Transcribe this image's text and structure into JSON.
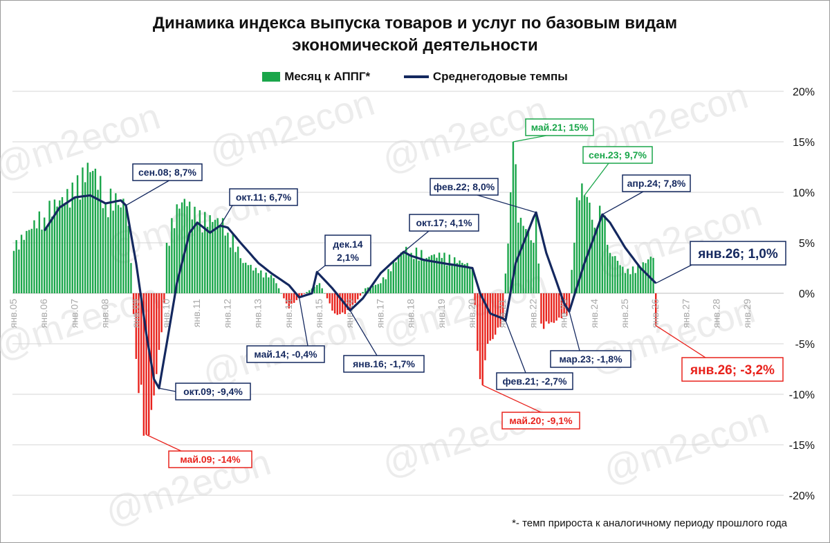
{
  "title_line1": "Динамика индекса выпуска товаров и услуг по базовым видам",
  "title_line2": "экономической деятельности",
  "legend": {
    "bars": "Месяц к АППГ*",
    "line": "Среднегодовые темпы"
  },
  "footnote": "*- темп прироста к аналогичному периоду прошлого года",
  "watermark": "@m2econ",
  "colors": {
    "bar_pos": "#1aa64a",
    "bar_neg": "#e8221c",
    "line": "#14285f",
    "ann_green": "#1aa64a",
    "ann_red": "#e8221c",
    "ann_navy": "#14285f"
  },
  "chart_data": {
    "type": "bar",
    "title": "Динамика индекса выпуска товаров и услуг по базовым видам экономической деятельности",
    "ylim": [
      -20,
      20
    ],
    "y_ticks": [
      "20%",
      "15%",
      "10%",
      "5%",
      "0%",
      "-5%",
      "-10%",
      "-15%",
      "-20%"
    ],
    "x_ticks": [
      "янв.05",
      "янв.06",
      "янв.07",
      "янв.08",
      "янв.09",
      "янв.10",
      "янв.11",
      "янв.12",
      "янв.13",
      "янв.14",
      "янв.15",
      "янв.16",
      "янв.17",
      "янв.18",
      "янв.19",
      "янв.20",
      "янв.21",
      "янв.22",
      "янв.23",
      "янв.24",
      "янв.25",
      "янв.26",
      "янв.27",
      "янв.28",
      "янв.29"
    ],
    "series": [
      {
        "name": "Месяц к АППГ*",
        "type": "bar",
        "anchors": [
          [
            "янв.05",
            4.2
          ],
          [
            "янв.06",
            7.5
          ],
          [
            "янв.07",
            9.5
          ],
          [
            "июл.07",
            12
          ],
          [
            "янв.08",
            9
          ],
          [
            "июл.08",
            8.5
          ],
          [
            "сен.08",
            8.7
          ],
          [
            "ноя.08",
            3
          ],
          [
            "янв.09",
            -6.5
          ],
          [
            "май.09",
            -14
          ],
          [
            "сен.09",
            -8
          ],
          [
            "дек.09",
            -1
          ],
          [
            "янв.10",
            5
          ],
          [
            "июл.10",
            9
          ],
          [
            "янв.11",
            7
          ],
          [
            "окт.11",
            6.7
          ],
          [
            "янв.12",
            6
          ],
          [
            "июл.12",
            3
          ],
          [
            "янв.13",
            2
          ],
          [
            "июл.13",
            1.5
          ],
          [
            "янв.14",
            -1.5
          ],
          [
            "май.14",
            -0.4
          ],
          [
            "янв.15",
            1
          ],
          [
            "июл.15",
            -2
          ],
          [
            "янв.16",
            -1.7
          ],
          [
            "июл.16",
            0.5
          ],
          [
            "янв.17",
            1
          ],
          [
            "окт.17",
            4.1
          ],
          [
            "янв.18",
            4
          ],
          [
            "июл.18",
            3.5
          ],
          [
            "янв.19",
            3.5
          ],
          [
            "июл.19",
            3
          ],
          [
            "янв.20",
            2.5
          ],
          [
            "апр.20",
            -8.5
          ],
          [
            "май.20",
            -9.1
          ],
          [
            "июл.20",
            -5
          ],
          [
            "янв.21",
            -2.5
          ],
          [
            "апр.21",
            10
          ],
          [
            "май.21",
            15
          ],
          [
            "июл.21",
            7
          ],
          [
            "янв.22",
            5
          ],
          [
            "фев.22",
            8
          ],
          [
            "апр.22",
            -3
          ],
          [
            "июл.22",
            -3
          ],
          [
            "янв.23",
            -2
          ],
          [
            "мар.23",
            -1.8
          ],
          [
            "июн.23",
            9.5
          ],
          [
            "сен.23",
            9.7
          ],
          [
            "янв.24",
            6.5
          ],
          [
            "апр.24",
            7.8
          ],
          [
            "июл.24",
            4
          ],
          [
            "янв.25",
            2
          ],
          [
            "июл.25",
            2.5
          ],
          [
            "дек.25",
            3.5
          ],
          [
            "янв.26",
            -3.2
          ]
        ]
      },
      {
        "name": "Среднегодовые темпы",
        "type": "line",
        "anchors": [
          [
            "янв.06",
            6.2
          ],
          [
            "июл.06",
            8.5
          ],
          [
            "янв.07",
            9.5
          ],
          [
            "июл.07",
            9.7
          ],
          [
            "янв.08",
            8.9
          ],
          [
            "июл.08",
            9.2
          ],
          [
            "сен.08",
            8.7
          ],
          [
            "янв.09",
            3
          ],
          [
            "май.09",
            -4
          ],
          [
            "авг.09",
            -8.5
          ],
          [
            "окт.09",
            -9.4
          ],
          [
            "янв.10",
            -5
          ],
          [
            "май.10",
            1
          ],
          [
            "окт.10",
            6
          ],
          [
            "янв.11",
            7
          ],
          [
            "июн.11",
            6
          ],
          [
            "окт.11",
            6.7
          ],
          [
            "янв.12",
            6.5
          ],
          [
            "июн.12",
            5
          ],
          [
            "янв.13",
            3
          ],
          [
            "июн.13",
            2
          ],
          [
            "янв.14",
            0.8
          ],
          [
            "май.14",
            -0.4
          ],
          [
            "окт.14",
            0
          ],
          [
            "дек.14",
            2.1
          ],
          [
            "июн.15",
            0.5
          ],
          [
            "янв.16",
            -1.7
          ],
          [
            "июн.16",
            -0.5
          ],
          [
            "янв.17",
            2
          ],
          [
            "окт.17",
            4.1
          ],
          [
            "янв.18",
            3.7
          ],
          [
            "июн.18",
            3.3
          ],
          [
            "янв.19",
            3
          ],
          [
            "июн.19",
            2.8
          ],
          [
            "янв.20",
            2.5
          ],
          [
            "апр.20",
            0
          ],
          [
            "авг.20",
            -2
          ],
          [
            "янв.21",
            -2.5
          ],
          [
            "фев.21",
            -2.7
          ],
          [
            "июн.21",
            3
          ],
          [
            "янв.22",
            7.5
          ],
          [
            "фев.22",
            8
          ],
          [
            "июн.22",
            4
          ],
          [
            "янв.23",
            -1
          ],
          [
            "мар.23",
            -1.8
          ],
          [
            "сен.23",
            3
          ],
          [
            "апр.24",
            7.8
          ],
          [
            "июл.24",
            7
          ],
          [
            "янв.25",
            4.5
          ],
          [
            "июл.25",
            2.5
          ],
          [
            "янв.26",
            1
          ]
        ]
      }
    ],
    "annotations": [
      {
        "label": "сен.08; 8,7%",
        "color": "navy"
      },
      {
        "label": "окт.11; 6,7%",
        "color": "navy"
      },
      {
        "label": "дек.14",
        "label2": "2,1%",
        "color": "navy"
      },
      {
        "label": "окт.17; 4,1%",
        "color": "navy"
      },
      {
        "label": "фев.22; 8,0%",
        "color": "navy"
      },
      {
        "label": "май.21; 15%",
        "color": "green"
      },
      {
        "label": "сен.23; 9,7%",
        "color": "green"
      },
      {
        "label": "апр.24; 7,8%",
        "color": "navy"
      },
      {
        "label": "янв.26; 1,0%",
        "color": "navy",
        "big": true
      },
      {
        "label": "май.14; -0,4%",
        "color": "navy"
      },
      {
        "label": "янв.16; -1,7%",
        "color": "navy"
      },
      {
        "label": "окт.09; -9,4%",
        "color": "navy"
      },
      {
        "label": "май.09; -14%",
        "color": "red"
      },
      {
        "label": "фев.21; -2,7%",
        "color": "navy"
      },
      {
        "label": "мар.23; -1,8%",
        "color": "navy"
      },
      {
        "label": "май.20; -9,1%",
        "color": "red"
      },
      {
        "label": "янв.26; -3,2%",
        "color": "red",
        "big": true
      }
    ]
  }
}
